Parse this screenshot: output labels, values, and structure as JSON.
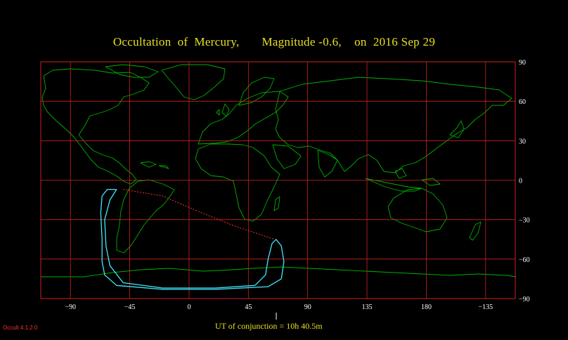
{
  "title": "Occultation  of  Mercury,       Magnitude -0.6,    on  2016 Sep 29",
  "conjunction_label": "UT of conjunction = 10h 40.5m",
  "version_label": "Occult 4.1.2.0",
  "colors": {
    "background": "#000000",
    "title": "#e8e020",
    "grid": "#d02020",
    "coast": "#00b000",
    "limit_curve": "#40e8ff",
    "central_path": "#ff3030",
    "version": "#ff3030"
  },
  "grid": {
    "lon_ticks": [
      -90,
      -45,
      0,
      45,
      90,
      135,
      180,
      -135
    ],
    "lon_labels": [
      "−90",
      "−45",
      "0",
      "45",
      "90",
      "135",
      "180",
      "−135"
    ],
    "lat_ticks": [
      90,
      60,
      30,
      0,
      -30,
      -60,
      -90
    ],
    "lat_labels": [
      "90",
      "60",
      "30",
      "0",
      "−30",
      "−60",
      "−90"
    ]
  },
  "paths": {
    "central_line": [
      [
        -50,
        -7
      ],
      [
        -20,
        -12
      ],
      [
        10,
        -25
      ],
      [
        35,
        -35
      ],
      [
        65,
        -45
      ]
    ],
    "limit_curve": [
      [
        -55,
        -7
      ],
      [
        -60,
        -15
      ],
      [
        -64,
        -30
      ],
      [
        -63,
        -50
      ],
      [
        -60,
        -65
      ],
      [
        -50,
        -78
      ],
      [
        -20,
        -82
      ],
      [
        20,
        -82
      ],
      [
        50,
        -80
      ],
      [
        58,
        -72
      ],
      [
        60,
        -60
      ],
      [
        63,
        -48
      ],
      [
        66,
        -45
      ],
      [
        70,
        -50
      ],
      [
        72,
        -62
      ],
      [
        70,
        -75
      ],
      [
        60,
        -81
      ],
      [
        20,
        -83
      ],
      [
        -20,
        -83
      ],
      [
        -55,
        -80
      ],
      [
        -64,
        -72
      ],
      [
        -66,
        -62
      ],
      [
        -66,
        -45
      ],
      [
        -67,
        -25
      ],
      [
        -66,
        -12
      ],
      [
        -62,
        -7
      ],
      [
        -55,
        -7
      ]
    ]
  }
}
